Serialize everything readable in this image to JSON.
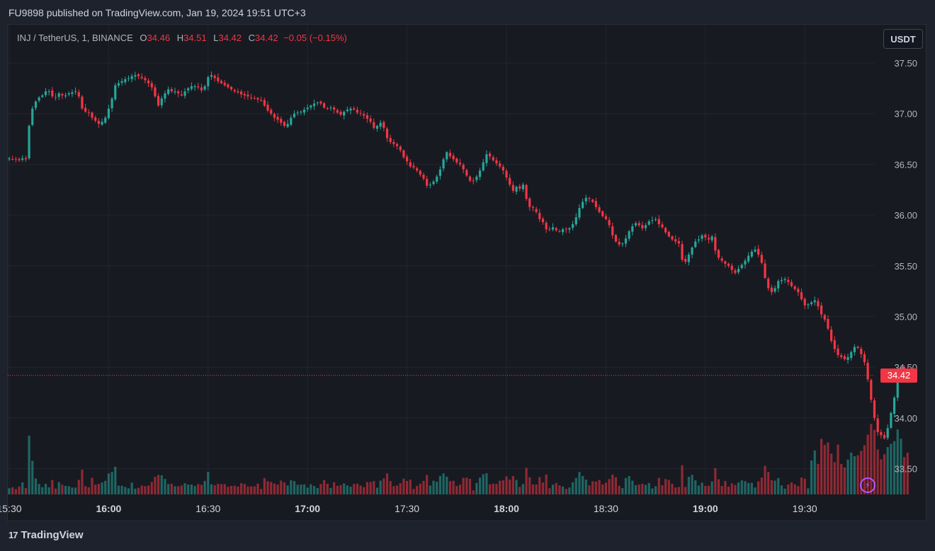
{
  "header": {
    "published": "FU9898 published on TradingView.com, Jan 19, 2024 19:51 UTC+3"
  },
  "legend": {
    "symbol": "INJ / TetherUS, 1, BINANCE",
    "o_label": "O",
    "o": "34.46",
    "h_label": "H",
    "h": "34.51",
    "l_label": "L",
    "l": "34.42",
    "c_label": "C",
    "c": "34.42",
    "change": "−0.05 (−0.15%)"
  },
  "currency_button": "USDT",
  "last_price_label": "34.42",
  "footer": {
    "brand": "TradingView",
    "logo_icon": "tradingview-logo-icon"
  },
  "colors": {
    "up": "#26a69a",
    "down": "#f23645",
    "background": "#181a21",
    "grid": "#22262f",
    "alert_icon": "#b455ff"
  },
  "chart_data": {
    "type": "candlestick",
    "x_tick_labels": [
      "15:30",
      "16:00",
      "16:30",
      "17:00",
      "17:30",
      "18:00",
      "18:30",
      "19:00",
      "19:30"
    ],
    "y_tick_labels": [
      "37.50",
      "37.00",
      "36.50",
      "36.00",
      "35.50",
      "35.00",
      "34.50",
      "34.00",
      "33.50"
    ],
    "ylim": [
      33.22,
      37.7
    ],
    "last_price": 34.42,
    "interval_minutes": 1,
    "start_time": "15:30",
    "series": [
      {
        "name": "INJ / TetherUS",
        "close_by_minute": [
          36.56,
          36.55,
          36.55,
          36.54,
          36.56,
          36.55,
          36.88,
          37.05,
          37.12,
          37.16,
          37.18,
          37.22,
          37.22,
          37.17,
          37.16,
          37.2,
          37.18,
          37.18,
          37.2,
          37.21,
          37.22,
          37.17,
          37.05,
          37.02,
          37.01,
          36.96,
          36.93,
          36.9,
          36.92,
          36.96,
          37.05,
          37.15,
          37.28,
          37.3,
          37.32,
          37.34,
          37.35,
          37.37,
          37.38,
          37.37,
          37.35,
          37.33,
          37.3,
          37.26,
          37.17,
          37.08,
          37.15,
          37.2,
          37.24,
          37.22,
          37.22,
          37.2,
          37.18,
          37.22,
          37.25,
          37.27,
          37.27,
          37.26,
          37.23,
          37.27,
          37.36,
          37.38,
          37.35,
          37.32,
          37.3,
          37.28,
          37.26,
          37.24,
          37.22,
          37.21,
          37.19,
          37.18,
          37.17,
          37.16,
          37.15,
          37.14,
          37.13,
          37.08,
          37.03,
          37.0,
          36.96,
          36.94,
          36.91,
          36.88,
          36.9,
          36.96,
          37.0,
          37.01,
          37.02,
          37.04,
          37.06,
          37.08,
          37.1,
          37.11,
          37.1,
          37.06,
          37.05,
          37.06,
          37.04,
          37.01,
          36.99,
          37.02,
          37.04,
          37.05,
          37.04,
          37.01,
          37.0,
          36.98,
          36.95,
          36.92,
          36.86,
          36.88,
          36.91,
          36.86,
          36.76,
          36.72,
          36.7,
          36.68,
          36.64,
          36.57,
          36.53,
          36.48,
          36.47,
          36.44,
          36.4,
          36.36,
          36.29,
          36.3,
          36.33,
          36.38,
          36.45,
          36.55,
          36.62,
          36.58,
          36.55,
          36.52,
          36.5,
          36.45,
          36.39,
          36.34,
          36.34,
          36.38,
          36.44,
          36.52,
          36.6,
          36.58,
          36.54,
          36.51,
          36.48,
          36.44,
          36.37,
          36.3,
          36.24,
          36.28,
          36.26,
          36.3,
          36.16,
          36.08,
          36.07,
          36.03,
          35.96,
          35.93,
          35.86,
          35.86,
          35.88,
          35.85,
          35.84,
          35.86,
          35.86,
          35.87,
          35.91,
          35.98,
          36.07,
          36.13,
          36.17,
          36.16,
          36.13,
          36.08,
          36.03,
          35.99,
          35.96,
          35.9,
          35.8,
          35.74,
          35.71,
          35.72,
          35.77,
          35.84,
          35.89,
          35.92,
          35.9,
          35.87,
          35.9,
          35.94,
          35.95,
          35.96,
          35.91,
          35.88,
          35.83,
          35.79,
          35.76,
          35.74,
          35.72,
          35.56,
          35.54,
          35.61,
          35.68,
          35.74,
          35.76,
          35.8,
          35.78,
          35.76,
          35.79,
          35.65,
          35.58,
          35.55,
          35.52,
          35.5,
          35.46,
          35.43,
          35.47,
          35.51,
          35.55,
          35.6,
          35.64,
          35.66,
          35.61,
          35.53,
          35.38,
          35.28,
          35.24,
          35.28,
          35.35,
          35.36,
          35.37,
          35.34,
          35.3,
          35.27,
          35.24,
          35.17,
          35.11,
          35.12,
          35.14,
          35.16,
          35.1,
          35.02,
          34.97,
          34.88,
          34.76,
          34.68,
          34.62,
          34.6,
          34.58,
          34.6,
          34.65,
          34.7,
          34.69,
          34.63,
          34.55,
          34.38,
          34.18,
          34.0,
          33.86,
          33.83,
          33.8,
          33.9,
          34.05,
          34.2,
          34.38,
          34.5,
          34.46,
          34.42
        ]
      }
    ]
  }
}
